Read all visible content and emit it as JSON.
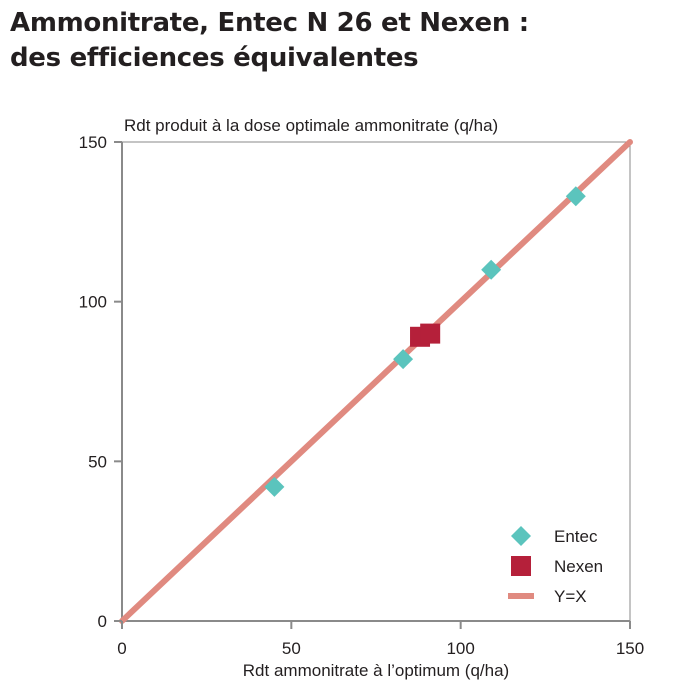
{
  "title": {
    "line1": "Ammonitrate, Entec N 26 et Nexen :",
    "line2": "des efficiences équivalentes"
  },
  "colors": {
    "entec": "#5bc4bd",
    "nexen": "#b5203a",
    "yx": "#e08a80",
    "axis": "#8a8a8a",
    "text": "#231f20"
  },
  "chart_data": {
    "type": "scatter",
    "title": "",
    "xlabel": "Rdt ammonitrate à l’optimum (q/ha)",
    "ylabel": "Rdt produit à la dose optimale ammonitrate (q/ha)",
    "xlim": [
      0,
      150
    ],
    "ylim": [
      0,
      150
    ],
    "xticks": [
      0,
      50,
      100,
      150
    ],
    "yticks": [
      0,
      50,
      100,
      150
    ],
    "grid": false,
    "legend_position": "bottom-right",
    "series": [
      {
        "name": "Entec",
        "marker": "diamond",
        "color": "#5bc4bd",
        "points": [
          {
            "x": 45,
            "y": 42
          },
          {
            "x": 83,
            "y": 82
          },
          {
            "x": 109,
            "y": 110
          },
          {
            "x": 134,
            "y": 133
          }
        ]
      },
      {
        "name": "Nexen",
        "marker": "square",
        "color": "#b5203a",
        "points": [
          {
            "x": 88,
            "y": 89
          },
          {
            "x": 91,
            "y": 90
          }
        ]
      },
      {
        "name": "Y=X",
        "type": "line",
        "color": "#e08a80",
        "points": [
          {
            "x": 0,
            "y": 0
          },
          {
            "x": 150,
            "y": 150
          }
        ]
      }
    ]
  }
}
